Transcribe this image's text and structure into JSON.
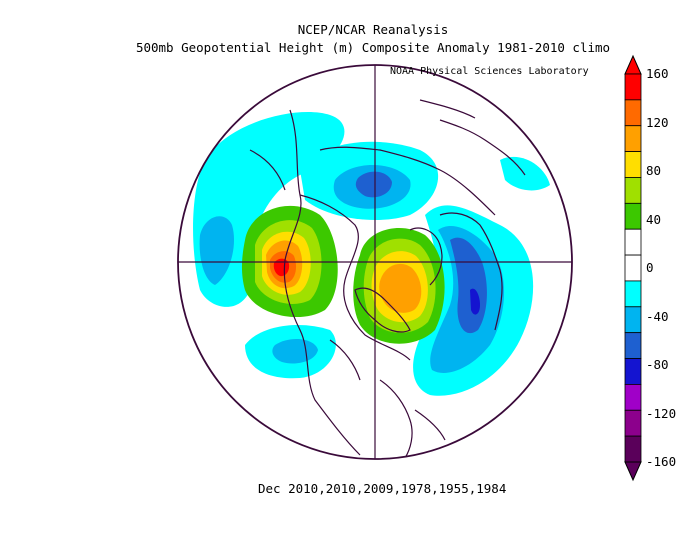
{
  "header": {
    "title_line1": "NCEP/NCAR Reanalysis",
    "title_line2": "500mb Geopotential Height (m) Composite Anomaly 1981-2010 climo",
    "credit": "NOAA Physical Sciences Laboratory"
  },
  "caption": "Dec 2010,2010,2009,1978,1955,1984",
  "colorbar": {
    "labels": [
      "160",
      "120",
      "80",
      "40",
      "0",
      "-40",
      "-80",
      "-120",
      "-160"
    ],
    "colors": [
      "#ff0000",
      "#ff6a00",
      "#ffa000",
      "#ffde00",
      "#a0e000",
      "#3cc800",
      "#ffffff",
      "#ffffff",
      "#00ffff",
      "#00b4f0",
      "#1e60d0",
      "#1414d0",
      "#a000c8",
      "#8c008c",
      "#5a005a"
    ]
  },
  "map": {
    "projection": "north-polar-stereographic",
    "anomalies": [
      {
        "name": "ridge-west-north-america",
        "sign": "positive",
        "peak": 140
      },
      {
        "name": "ridge-greenland-arctic",
        "sign": "positive",
        "peak": 110
      },
      {
        "name": "trough-europe",
        "sign": "negative",
        "peak": -90
      },
      {
        "name": "trough-north-pacific",
        "sign": "negative",
        "peak": -50
      },
      {
        "name": "trough-eastern-siberia",
        "sign": "negative",
        "peak": -60
      }
    ]
  }
}
